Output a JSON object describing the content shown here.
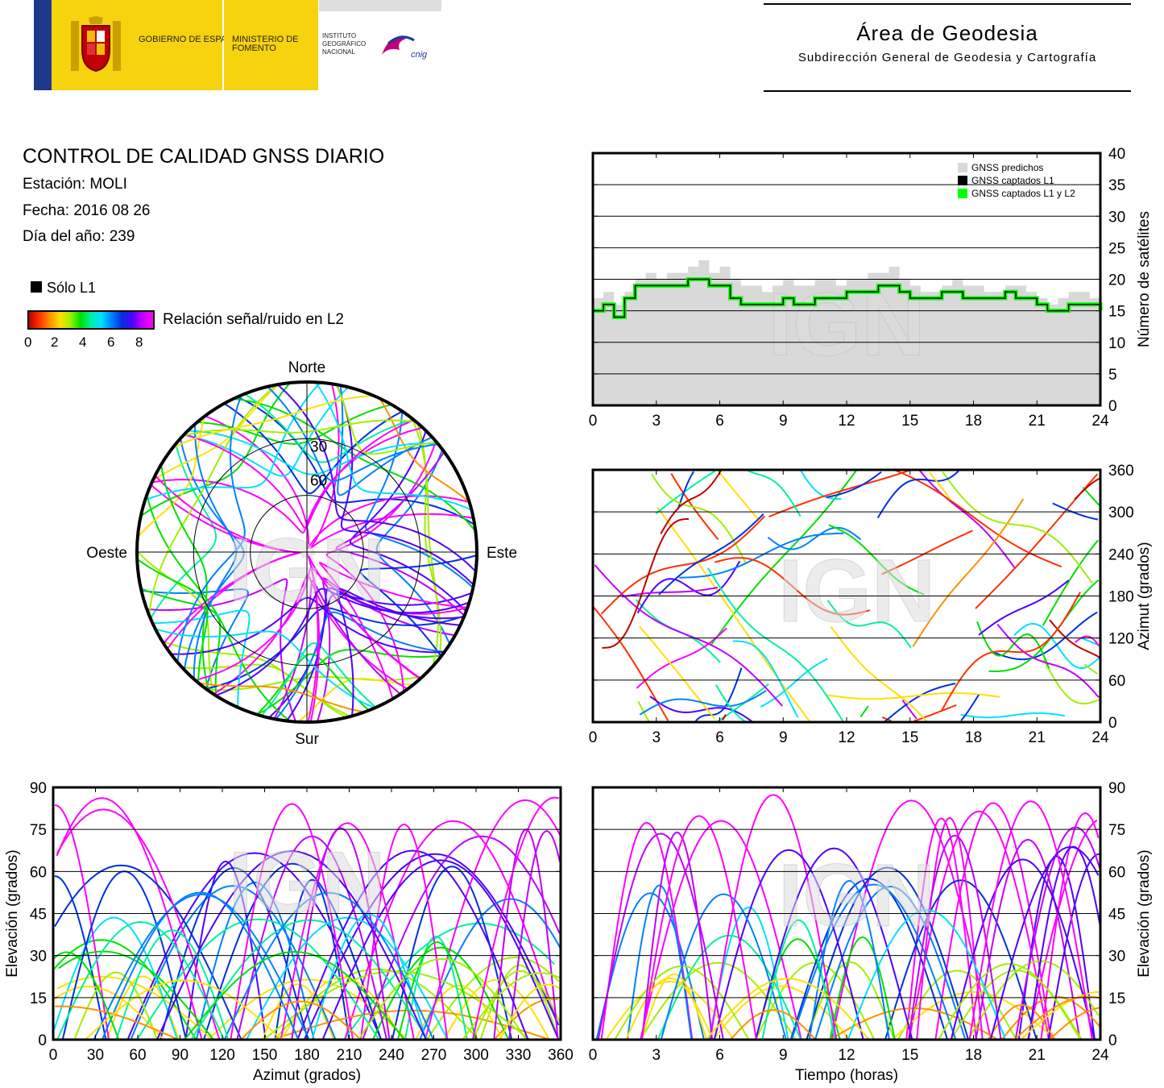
{
  "header": {
    "gobierno": "GOBIERNO DE ESPAÑA",
    "ministerio": "MINISTERIO DE FOMENTO",
    "instituto": "INSTITUTO GEOGRÁFICO NACIONAL",
    "cnig": "cnig",
    "area_title": "Área de Geodesia",
    "area_subtitle": "Subdirección General de Geodesia y Cartografía"
  },
  "info": {
    "title": "CONTROL DE CALIDAD GNSS DIARIO",
    "station": "Estación: MOLI",
    "date": "Fecha: 2016 08 26",
    "doy": "Día del año: 239"
  },
  "legend": {
    "l1_only": "Sólo L1",
    "snr_label": "Relación señal/ruido en L2",
    "snr_ticks": [
      "0",
      "2",
      "4",
      "6",
      "8"
    ]
  },
  "watermark": "IGN",
  "chart_data": [
    {
      "type": "area",
      "id": "satellites",
      "ylabel": "Número de satélites",
      "x_ticks": [
        "0",
        "3",
        "6",
        "9",
        "12",
        "15",
        "18",
        "21",
        "24"
      ],
      "y_ticks": [
        "0",
        "5",
        "10",
        "15",
        "20",
        "25",
        "30",
        "35",
        "40"
      ],
      "xlim": [
        0,
        24
      ],
      "ylim": [
        0,
        40
      ],
      "legend": [
        "GNSS predichos",
        "GNSS captados L1",
        "GNSS captados L1 y L2"
      ],
      "colors": {
        "predicted": "#d9d9d9",
        "l1": "#000000",
        "l1l2": "#00ff00"
      },
      "x": [
        0,
        0.5,
        1,
        1.5,
        2,
        2.5,
        3,
        3.5,
        4,
        4.5,
        5,
        5.5,
        6,
        6.5,
        7,
        7.5,
        8,
        8.5,
        9,
        9.5,
        10,
        10.5,
        11,
        11.5,
        12,
        12.5,
        13,
        13.5,
        14,
        14.5,
        15,
        15.5,
        16,
        16.5,
        17,
        17.5,
        18,
        18.5,
        19,
        19.5,
        20,
        20.5,
        21,
        21.5,
        22,
        22.5,
        23,
        23.5,
        24
      ],
      "predicted": [
        17,
        18,
        16,
        18,
        20,
        21,
        20,
        21,
        21,
        22,
        23,
        21,
        22,
        20,
        19,
        19,
        18,
        19,
        20,
        19,
        19,
        20,
        20,
        19,
        20,
        20,
        21,
        21,
        22,
        20,
        19,
        18,
        18,
        19,
        20,
        19,
        19,
        18,
        18,
        19,
        19,
        18,
        17,
        16,
        17,
        18,
        18,
        17,
        16
      ],
      "captured": [
        15,
        16,
        14,
        17,
        19,
        19,
        19,
        19,
        19,
        20,
        20,
        19,
        19,
        17,
        16,
        16,
        16,
        16,
        17,
        16,
        16,
        17,
        17,
        17,
        18,
        18,
        18,
        19,
        19,
        18,
        17,
        17,
        17,
        18,
        18,
        17,
        17,
        17,
        17,
        18,
        17,
        17,
        16,
        15,
        15,
        16,
        16,
        16,
        15
      ]
    },
    {
      "type": "polar-skyplot",
      "id": "skyplot",
      "directions": {
        "n": "Norte",
        "s": "Sur",
        "e": "Este",
        "w": "Oeste"
      },
      "rings": [
        "30",
        "60"
      ]
    },
    {
      "type": "scatter",
      "id": "azimuth-time",
      "ylabel": "Azimut (grados)",
      "x_ticks": [
        "0",
        "3",
        "6",
        "9",
        "12",
        "15",
        "18",
        "21",
        "24"
      ],
      "y_ticks": [
        "0",
        "60",
        "120",
        "180",
        "240",
        "300",
        "360"
      ],
      "xlim": [
        0,
        24
      ],
      "ylim": [
        0,
        360
      ]
    },
    {
      "type": "scatter",
      "id": "elev-azimuth",
      "xlabel": "Azimut (grados)",
      "ylabel": "Elevación (grados)",
      "x_ticks": [
        "0",
        "30",
        "60",
        "90",
        "120",
        "150",
        "180",
        "210",
        "240",
        "270",
        "300",
        "330",
        "360"
      ],
      "y_ticks": [
        "0",
        "15",
        "30",
        "45",
        "60",
        "75",
        "90"
      ],
      "xlim": [
        0,
        360
      ],
      "ylim": [
        0,
        90
      ]
    },
    {
      "type": "scatter",
      "id": "elev-time",
      "xlabel": "Tiempo (horas)",
      "ylabel": "Elevación (grados)",
      "x_ticks": [
        "0",
        "3",
        "6",
        "9",
        "12",
        "15",
        "18",
        "21",
        "24"
      ],
      "y_ticks": [
        "0",
        "15",
        "30",
        "45",
        "60",
        "75",
        "90"
      ],
      "xlim": [
        0,
        24
      ],
      "ylim": [
        0,
        90
      ]
    }
  ]
}
